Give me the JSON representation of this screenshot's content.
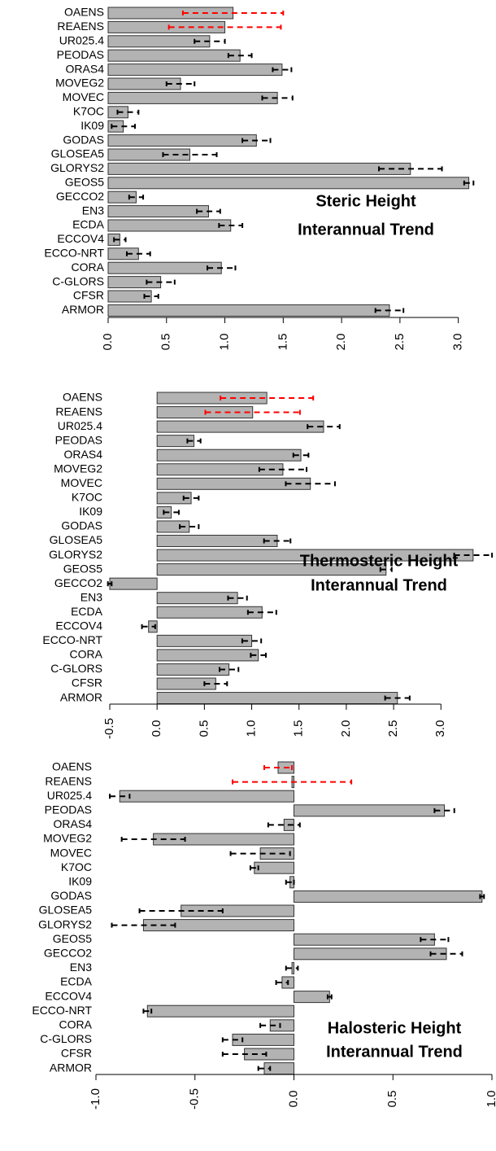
{
  "chart_data": [
    {
      "type": "barh",
      "title": [
        "Steric Height",
        "Interannual Trend"
      ],
      "categories": [
        "OAENS",
        "REAENS",
        "UR025.4",
        "PEODAS",
        "ORAS4",
        "MOVEG2",
        "MOVEC",
        "K7OC",
        "IK09",
        "GODAS",
        "GLOSEA5",
        "GLORYS2",
        "GEOS5",
        "GECCO2",
        "EN3",
        "ECDA",
        "ECCOV4",
        "ECCO-NRT",
        "CORA",
        "C-GLORS",
        "CFSR",
        "ARMOR"
      ],
      "values": [
        1.07,
        1.0,
        0.87,
        1.13,
        1.49,
        0.62,
        1.45,
        0.17,
        0.13,
        1.27,
        0.7,
        2.59,
        3.09,
        0.24,
        0.86,
        1.05,
        0.1,
        0.26,
        0.97,
        0.45,
        0.37,
        2.41
      ],
      "errors": [
        0.43,
        0.48,
        0.13,
        0.1,
        0.08,
        0.12,
        0.13,
        0.09,
        0.1,
        0.12,
        0.23,
        0.27,
        0.04,
        0.06,
        0.1,
        0.1,
        0.05,
        0.1,
        0.12,
        0.12,
        0.06,
        0.12
      ],
      "color": "#b3b3b3",
      "error_colors": [
        "#ff0000",
        "#ff0000",
        "#000000",
        "#000000",
        "#000000",
        "#000000",
        "#000000",
        "#000000",
        "#000000",
        "#000000",
        "#000000",
        "#000000",
        "#000000",
        "#000000",
        "#000000",
        "#000000",
        "#000000",
        "#000000",
        "#000000",
        "#000000",
        "#000000",
        "#000000"
      ],
      "xlim": [
        0,
        3.1
      ],
      "xticks": [
        {
          "value": 0,
          "label": "0.0"
        },
        0.5,
        {
          "value": 1,
          "label": "1.0"
        },
        1.5,
        {
          "value": 2,
          "label": "2.0"
        },
        2.5,
        {
          "value": 3,
          "label": "3.0"
        }
      ]
    },
    {
      "type": "barh",
      "title": [
        "Thermosteric Height",
        "Interannual Trend"
      ],
      "categories": [
        "OAENS",
        "REAENS",
        "UR025.4",
        "PEODAS",
        "ORAS4",
        "MOVEG2",
        "MOVEC",
        "K7OC",
        "IK09",
        "GODAS",
        "GLOSEA5",
        "GLORYS2",
        "GEOS5",
        "GECCO2",
        "EN3",
        "ECDA",
        "ECCOV4",
        "ECCO-NRT",
        "CORA",
        "C-GLORS",
        "CFSR",
        "ARMOR"
      ],
      "values": [
        1.16,
        1.01,
        1.76,
        0.39,
        1.52,
        1.33,
        1.62,
        0.36,
        0.15,
        0.34,
        1.27,
        3.34,
        2.42,
        -0.5,
        0.85,
        1.11,
        -0.09,
        1.0,
        1.07,
        0.76,
        0.62,
        2.54
      ],
      "errors": [
        0.49,
        0.5,
        0.17,
        0.07,
        0.08,
        0.25,
        0.26,
        0.08,
        0.08,
        0.1,
        0.14,
        0.2,
        0.06,
        0.02,
        0.1,
        0.15,
        0.07,
        0.1,
        0.08,
        0.1,
        0.12,
        0.13
      ],
      "color": "#b3b3b3",
      "error_colors": [
        "#ff0000",
        "#ff0000",
        "#000000",
        "#000000",
        "#000000",
        "#000000",
        "#000000",
        "#000000",
        "#000000",
        "#000000",
        "#000000",
        "#000000",
        "#000000",
        "#000000",
        "#000000",
        "#000000",
        "#000000",
        "#000000",
        "#000000",
        "#000000",
        "#000000",
        "#000000"
      ],
      "xlim": [
        -0.5,
        3.35
      ],
      "xticks": [
        -0.5,
        {
          "value": 0,
          "label": "0.0"
        },
        0.5,
        {
          "value": 1,
          "label": "1.0"
        },
        1.5,
        {
          "value": 2,
          "label": "2.0"
        },
        2.5,
        {
          "value": 3,
          "label": "3.0"
        }
      ]
    },
    {
      "type": "barh",
      "title": [
        "Halosteric Height",
        "Interannual Trend"
      ],
      "categories": [
        "OAENS",
        "REAENS",
        "UR025.4",
        "PEODAS",
        "ORAS4",
        "MOVEG2",
        "MOVEC",
        "K7OC",
        "IK09",
        "GODAS",
        "GLOSEA5",
        "GLORYS2",
        "GEOS5",
        "GECCO2",
        "EN3",
        "ECDA",
        "ECCOV4",
        "ECCO-NRT",
        "CORA",
        "C-GLORS",
        "CFSR",
        "ARMOR"
      ],
      "values": [
        -0.08,
        -0.01,
        -0.88,
        0.76,
        -0.05,
        -0.71,
        -0.17,
        -0.2,
        -0.02,
        0.95,
        -0.57,
        -0.76,
        0.71,
        0.77,
        -0.01,
        -0.06,
        0.18,
        -0.74,
        -0.12,
        -0.31,
        -0.25,
        -0.15
      ],
      "errors": [
        0.07,
        0.3,
        0.05,
        0.05,
        0.08,
        0.16,
        0.15,
        0.02,
        0.02,
        0.01,
        0.21,
        0.16,
        0.07,
        0.08,
        0.03,
        0.03,
        0.01,
        0.02,
        0.05,
        0.05,
        0.11,
        0.03
      ],
      "color": "#b3b3b3",
      "error_colors": [
        "#ff0000",
        "#ff0000",
        "#000000",
        "#000000",
        "#000000",
        "#000000",
        "#000000",
        "#000000",
        "#000000",
        "#000000",
        "#000000",
        "#000000",
        "#000000",
        "#000000",
        "#000000",
        "#000000",
        "#000000",
        "#000000",
        "#000000",
        "#000000",
        "#000000",
        "#000000"
      ],
      "xlim": [
        -1,
        1
      ],
      "xticks": [
        {
          "value": -1,
          "label": "-1.0"
        },
        -0.5,
        {
          "value": 0,
          "label": "0.0"
        },
        0.5,
        {
          "value": 1,
          "label": "1.0"
        }
      ]
    }
  ]
}
